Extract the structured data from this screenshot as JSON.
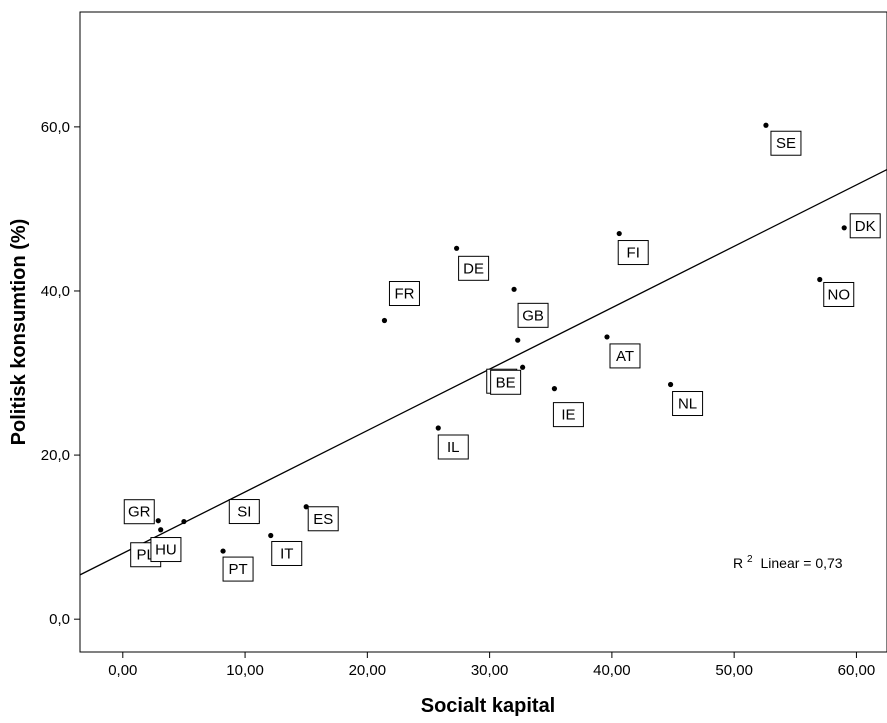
{
  "chart_data": {
    "type": "scatter",
    "title": "",
    "xlabel": "Socialt kapital",
    "ylabel": "Politisk konsumtion (%)",
    "xlim": [
      -3.5,
      62.5
    ],
    "ylim": [
      -4,
      74
    ],
    "x_ticks": [
      {
        "value": 0,
        "label": "0,00"
      },
      {
        "value": 10,
        "label": "10,00"
      },
      {
        "value": 20,
        "label": "20,00"
      },
      {
        "value": 30,
        "label": "30,00"
      },
      {
        "value": 40,
        "label": "40,00"
      },
      {
        "value": 50,
        "label": "50,00"
      },
      {
        "value": 60,
        "label": "60,00"
      }
    ],
    "y_ticks": [
      {
        "value": 0,
        "label": "0,0"
      },
      {
        "value": 20,
        "label": "20,0"
      },
      {
        "value": 40,
        "label": "40,0"
      },
      {
        "value": 60,
        "label": "60,0"
      }
    ],
    "grid": false,
    "points": [
      {
        "label": "SE",
        "x": 52.6,
        "y": 60.2
      },
      {
        "label": "DK",
        "x": 59.0,
        "y": 47.7
      },
      {
        "label": "FI",
        "x": 40.6,
        "y": 47.0
      },
      {
        "label": "NO",
        "x": 57.0,
        "y": 41.4
      },
      {
        "label": "DE",
        "x": 27.3,
        "y": 45.2
      },
      {
        "label": "GB",
        "x": 32.0,
        "y": 40.2
      },
      {
        "label": "LU",
        "x": 32.3,
        "y": 34.0
      },
      {
        "label": "FR",
        "x": 21.4,
        "y": 36.4
      },
      {
        "label": "AT",
        "x": 39.6,
        "y": 34.4
      },
      {
        "label": "BE",
        "x": 32.7,
        "y": 30.7
      },
      {
        "label": "NL",
        "x": 44.8,
        "y": 28.6
      },
      {
        "label": "IE",
        "x": 35.3,
        "y": 28.1
      },
      {
        "label": "IL",
        "x": 25.8,
        "y": 23.3
      },
      {
        "label": "ES",
        "x": 15.0,
        "y": 13.7
      },
      {
        "label": "SI",
        "x": 11.0,
        "y": 11.9
      },
      {
        "label": "IT",
        "x": 12.1,
        "y": 10.2
      },
      {
        "label": "GR",
        "x": 2.9,
        "y": 12.0
      },
      {
        "label": "PL",
        "x": 3.1,
        "y": 10.9
      },
      {
        "label": "HU",
        "x": 5.0,
        "y": 11.9
      },
      {
        "label": "PT",
        "x": 8.2,
        "y": 8.3
      }
    ],
    "fit_line": {
      "type": "linear",
      "r2_label": "Linear = 0,73",
      "r2_prefix": "R",
      "r2_superscript": "2",
      "x_start": -3.5,
      "y_start": 5.4,
      "x_end": 62.5,
      "y_end": 54.8
    }
  },
  "colors": {
    "axis": "#000000",
    "point": "#000000",
    "line": "#000000",
    "background": "#ffffff"
  }
}
